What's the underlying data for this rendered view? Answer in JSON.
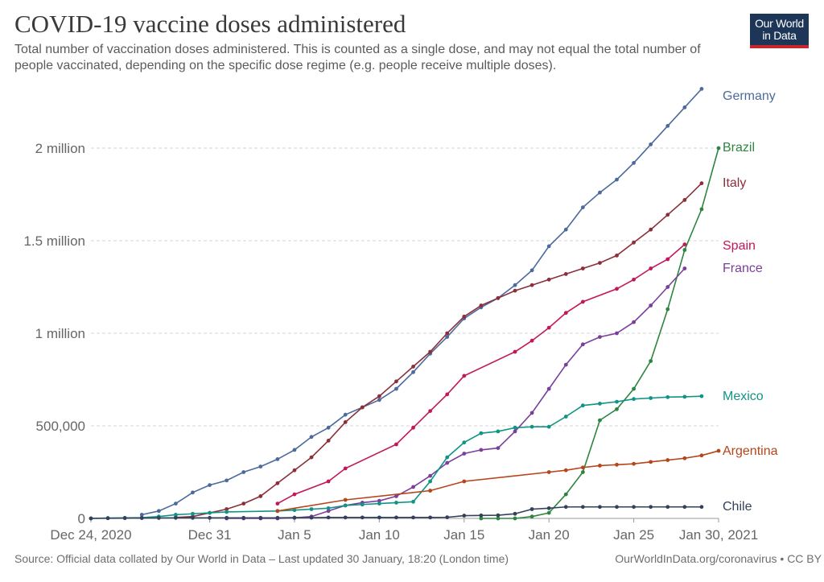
{
  "header": {
    "title": "COVID-19 vaccine doses administered",
    "subtitle": "Total number of vaccination doses administered. This is counted as a single dose, and may not equal the total number of people vaccinated, depending on the specific dose regime (e.g. people receive multiple doses).",
    "logo_line1": "Our World",
    "logo_line2": "in Data"
  },
  "footer": {
    "source": "Source: Official data collated by Our World in Data – Last updated 30 January, 18:20 (London time)",
    "license": "OurWorldInData.org/coronavirus • CC BY"
  },
  "chart_data": {
    "type": "line",
    "title": "COVID-19 vaccine doses administered",
    "x_start": "2020-12-24",
    "x_tick_labels": [
      "Dec 24, 2020",
      "Dec 31",
      "Jan 5",
      "Jan 10",
      "Jan 15",
      "Jan 20",
      "Jan 25",
      "Jan 30, 2021"
    ],
    "x_tick_days": [
      0,
      7,
      12,
      17,
      22,
      27,
      32,
      37
    ],
    "y_ticks": [
      0,
      500000,
      1000000,
      1500000,
      2000000
    ],
    "y_tick_labels": [
      "0",
      "500,000",
      "1 million",
      "1.5 million",
      "2 million"
    ],
    "ylim": [
      0,
      2300000
    ],
    "grid": "horizontal dashed",
    "legend": "line-end labels",
    "series": [
      {
        "name": "Germany",
        "color": "#4c6a9c",
        "x": [
          3,
          4,
          5,
          6,
          7,
          8,
          9,
          10,
          11,
          12,
          13,
          14,
          15,
          16,
          17,
          18,
          19,
          20,
          21,
          22,
          23,
          24,
          25,
          26,
          27,
          28,
          29,
          30,
          31,
          32,
          33,
          34,
          35,
          36
        ],
        "y": [
          20000,
          40000,
          80000,
          140000,
          180000,
          205000,
          250000,
          280000,
          320000,
          370000,
          440000,
          490000,
          560000,
          600000,
          640000,
          700000,
          790000,
          890000,
          980000,
          1080000,
          1140000,
          1190000,
          1260000,
          1340000,
          1470000,
          1560000,
          1680000,
          1760000,
          1830000,
          1920000,
          2020000,
          2120000,
          2220000,
          2320000
        ]
      },
      {
        "name": "Brazil",
        "color": "#2e8540",
        "x": [
          23,
          24,
          25,
          26,
          27,
          28,
          29,
          30,
          31,
          32,
          33,
          34,
          35,
          36,
          37
        ],
        "y": [
          0,
          0,
          0,
          10000,
          30000,
          130000,
          250000,
          530000,
          590000,
          700000,
          850000,
          1130000,
          1450000,
          1670000,
          2000000
        ]
      },
      {
        "name": "Italy",
        "color": "#8b2f3a",
        "x": [
          5,
          6,
          7,
          8,
          9,
          10,
          11,
          12,
          13,
          14,
          15,
          16,
          17,
          18,
          19,
          20,
          21,
          22,
          23,
          24,
          25,
          26,
          27,
          28,
          29,
          30,
          31,
          32,
          33,
          34,
          35,
          36
        ],
        "y": [
          5000,
          10000,
          30000,
          50000,
          80000,
          120000,
          190000,
          260000,
          330000,
          420000,
          520000,
          600000,
          660000,
          740000,
          820000,
          900000,
          1000000,
          1090000,
          1150000,
          1190000,
          1230000,
          1260000,
          1290000,
          1320000,
          1350000,
          1380000,
          1420000,
          1490000,
          1560000,
          1640000,
          1720000,
          1810000
        ]
      },
      {
        "name": "Spain",
        "color": "#c2185b",
        "x": [
          11,
          12,
          14,
          15,
          18,
          19,
          20,
          21,
          22,
          25,
          26,
          27,
          28,
          29,
          31,
          32,
          33,
          34,
          35
        ],
        "y": [
          80000,
          130000,
          200000,
          270000,
          400000,
          490000,
          580000,
          670000,
          770000,
          900000,
          960000,
          1030000,
          1110000,
          1170000,
          1240000,
          1290000,
          1350000,
          1400000,
          1480000
        ]
      },
      {
        "name": "France",
        "color": "#7a3f99",
        "x": [
          8,
          9,
          10,
          11,
          12,
          13,
          14,
          15,
          16,
          17,
          18,
          19,
          20,
          21,
          22,
          23,
          24,
          25,
          26,
          27,
          28,
          29,
          30,
          31,
          32,
          33,
          34,
          35
        ],
        "y": [
          0,
          0,
          0,
          0,
          3000,
          10000,
          40000,
          70000,
          85000,
          95000,
          120000,
          170000,
          230000,
          300000,
          350000,
          370000,
          380000,
          470000,
          570000,
          700000,
          830000,
          940000,
          980000,
          1000000,
          1060000,
          1150000,
          1250000,
          1350000
        ]
      },
      {
        "name": "Mexico",
        "color": "#119486",
        "x": [
          0,
          1,
          2,
          3,
          4,
          5,
          6,
          7,
          8,
          11,
          12,
          13,
          14,
          15,
          16,
          17,
          18,
          19,
          20,
          21,
          22,
          23,
          24,
          25,
          26,
          27,
          28,
          29,
          30,
          31,
          32,
          33,
          34,
          35,
          36
        ],
        "y": [
          0,
          2000,
          3000,
          4000,
          10000,
          20000,
          25000,
          30000,
          35000,
          40000,
          45000,
          50000,
          55000,
          70000,
          75000,
          80000,
          85000,
          90000,
          200000,
          330000,
          410000,
          460000,
          470000,
          490000,
          495000,
          495000,
          550000,
          610000,
          620000,
          630000,
          645000,
          650000,
          655000,
          657000,
          660000
        ]
      },
      {
        "name": "Argentina",
        "color": "#b5451b",
        "x": [
          11,
          15,
          20,
          22,
          27,
          28,
          29,
          30,
          31,
          32,
          33,
          34,
          35,
          36,
          37
        ],
        "y": [
          40000,
          100000,
          150000,
          200000,
          250000,
          260000,
          275000,
          285000,
          290000,
          295000,
          305000,
          315000,
          325000,
          340000,
          365000
        ]
      },
      {
        "name": "Chile",
        "color": "#33415c",
        "x": [
          0,
          1,
          2,
          3,
          4,
          5,
          6,
          7,
          8,
          9,
          10,
          11,
          12,
          13,
          14,
          15,
          16,
          17,
          18,
          19,
          20,
          21,
          22,
          23,
          24,
          25,
          26,
          27,
          28,
          29,
          30,
          31,
          32,
          33,
          34,
          35,
          36
        ],
        "y": [
          0,
          1000,
          1500,
          2000,
          2500,
          3000,
          3000,
          3000,
          3000,
          3000,
          3000,
          3000,
          4000,
          4000,
          5000,
          5000,
          5000,
          5000,
          5000,
          5000,
          5000,
          6000,
          15000,
          16000,
          17000,
          25000,
          50000,
          55000,
          62000,
          62000,
          62000,
          62000,
          62000,
          62000,
          62000,
          62000,
          62000
        ]
      }
    ]
  }
}
